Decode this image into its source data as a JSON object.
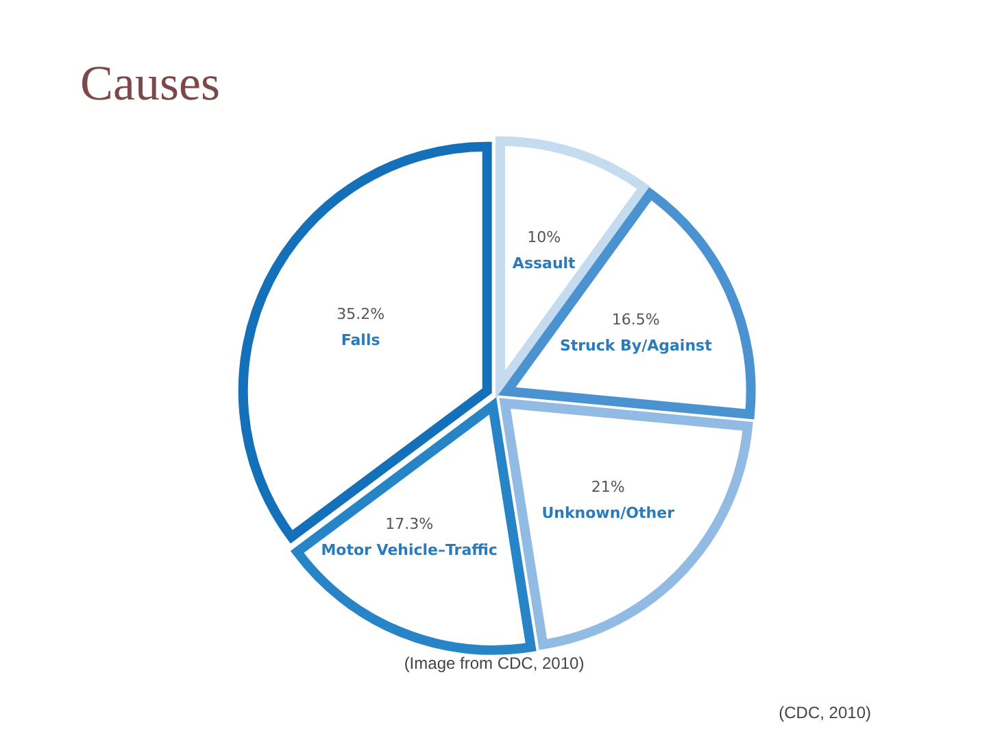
{
  "chart_data": {
    "type": "pie",
    "title": "Causes",
    "categories": [
      "Assault",
      "Struck By/Against",
      "Unknown/Other",
      "Motor Vehicle–Traffic",
      "Falls"
    ],
    "values": [
      10,
      16.5,
      21,
      17.3,
      35.2
    ],
    "colors": [
      "#c5dbf0",
      "#4b93d0",
      "#92bbe3",
      "#2784c6",
      "#1470b8"
    ],
    "value_labels": [
      "10%",
      "16.5%",
      "21%",
      "17.3%",
      "35.2%"
    ],
    "annotations": [
      "(Image from CDC, 2010)",
      "(CDC, 2010)"
    ]
  }
}
